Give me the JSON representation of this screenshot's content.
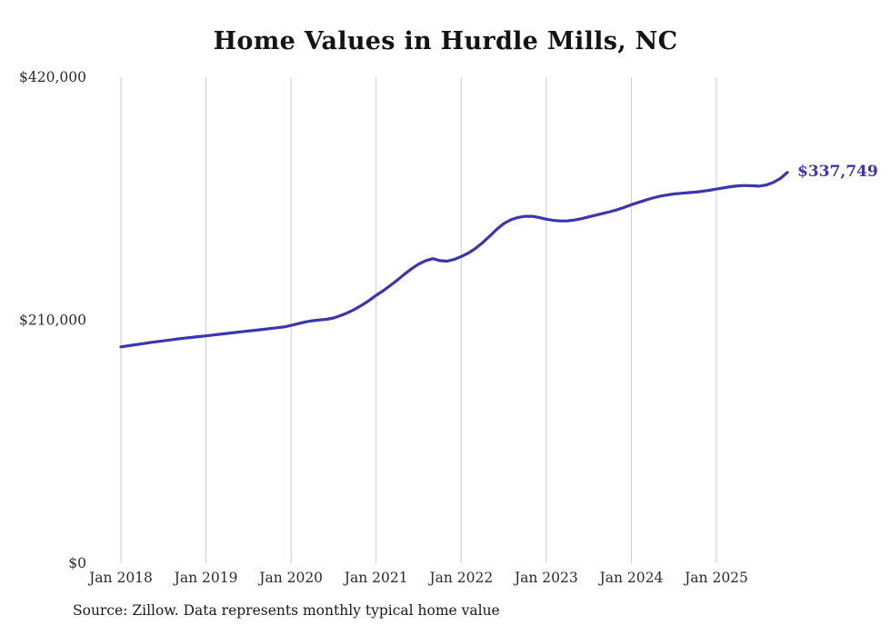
{
  "page": {
    "background_color": "#ffffff"
  },
  "chart_data": {
    "type": "line",
    "title": "Home Values in Hurdle Mills, NC",
    "series_name": "Monthly typical home value",
    "frequency": "monthly",
    "x_start": "Jan 2018",
    "x_end": "Nov 2025",
    "x_tick_labels": [
      "Jan 2018",
      "Jan 2019",
      "Jan 2020",
      "Jan 2021",
      "Jan 2022",
      "Jan 2023",
      "Jan 2024",
      "Jan 2025"
    ],
    "x_tick_month_indices": [
      0,
      12,
      24,
      36,
      48,
      60,
      72,
      84
    ],
    "y_ticks": [
      {
        "label": "$0",
        "value": 0
      },
      {
        "label": "$210,000",
        "value": 210000
      },
      {
        "label": "$420,000",
        "value": 420000
      }
    ],
    "ylim": [
      0,
      420000
    ],
    "grid": "vertical-only",
    "legend": "none",
    "line_color": "#3b36ad",
    "grid_color": "#cccccc",
    "end_label": "$337,749",
    "end_value": 337749,
    "values": [
      187000,
      187900,
      188800,
      189700,
      190600,
      191400,
      192200,
      193000,
      193800,
      194500,
      195200,
      195900,
      196500,
      197200,
      197900,
      198600,
      199300,
      200000,
      200700,
      201400,
      202100,
      202800,
      203500,
      204200,
      205500,
      207000,
      208500,
      209500,
      210200,
      210800,
      212000,
      214000,
      216500,
      219500,
      223000,
      227000,
      231500,
      235500,
      240000,
      244800,
      249800,
      254500,
      258500,
      261500,
      263200,
      261500,
      261000,
      262500,
      265000,
      268000,
      272000,
      277000,
      282500,
      288500,
      293500,
      296800,
      298800,
      299800,
      299800,
      298800,
      297300,
      296300,
      295800,
      295900,
      296600,
      297800,
      299300,
      300800,
      302300,
      303800,
      305500,
      307500,
      309800,
      311800,
      313800,
      315600,
      317100,
      318200,
      319100,
      319700,
      320200,
      320700,
      321400,
      322300,
      323400,
      324400,
      325400,
      326100,
      326400,
      326200,
      325900,
      326800,
      329000,
      332500,
      337749
    ]
  },
  "footer": {
    "source": "Source: Zillow. Data represents monthly typical home value"
  }
}
